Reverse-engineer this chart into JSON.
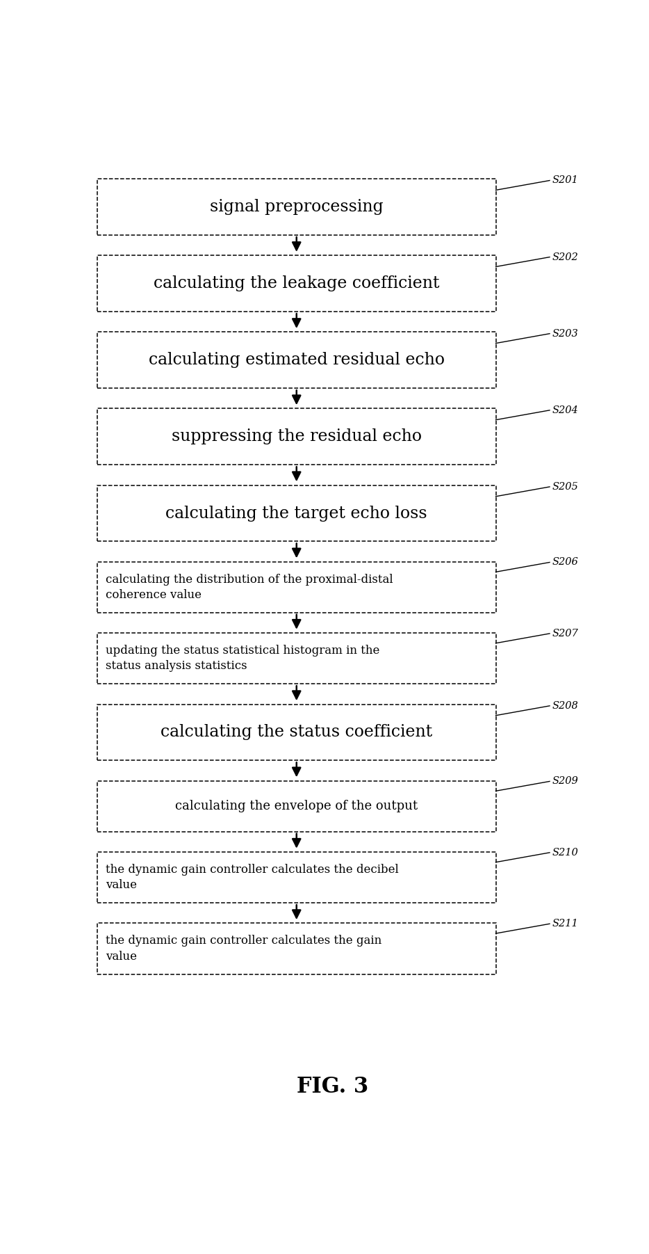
{
  "title": "FIG. 3",
  "background_color": "#ffffff",
  "fig_width": 9.34,
  "fig_height": 18.03,
  "boxes": [
    {
      "label": "signal preprocessing",
      "step": "S201",
      "font_size": 17,
      "text_lines": 1,
      "tall": true
    },
    {
      "label": "calculating the leakage coefficient",
      "step": "S202",
      "font_size": 17,
      "text_lines": 1,
      "tall": true
    },
    {
      "label": "calculating estimated residual echo",
      "step": "S203",
      "font_size": 17,
      "text_lines": 1,
      "tall": true
    },
    {
      "label": "suppressing the residual echo",
      "step": "S204",
      "font_size": 17,
      "text_lines": 1,
      "tall": true
    },
    {
      "label": "calculating the target echo loss",
      "step": "S205",
      "font_size": 17,
      "text_lines": 1,
      "tall": true
    },
    {
      "label": "calculating the distribution of the proximal-distal\ncoherence value",
      "step": "S206",
      "font_size": 12,
      "text_lines": 2,
      "tall": false
    },
    {
      "label": "updating the status statistical histogram in the\nstatus analysis statistics",
      "step": "S207",
      "font_size": 12,
      "text_lines": 2,
      "tall": false
    },
    {
      "label": "calculating the status coefficient",
      "step": "S208",
      "font_size": 17,
      "text_lines": 1,
      "tall": true
    },
    {
      "label": "calculating the envelope of the output",
      "step": "S209",
      "font_size": 13,
      "text_lines": 1,
      "tall": false
    },
    {
      "label": "the dynamic gain controller calculates the decibel\nvalue",
      "step": "S210",
      "font_size": 12,
      "text_lines": 2,
      "tall": false
    },
    {
      "label": "the dynamic gain controller calculates the gain\nvalue",
      "step": "S211",
      "font_size": 12,
      "text_lines": 2,
      "tall": false
    }
  ],
  "box_color": "#ffffff",
  "box_edge_color": "#000000",
  "arrow_color": "#000000",
  "step_label_color": "#000000"
}
